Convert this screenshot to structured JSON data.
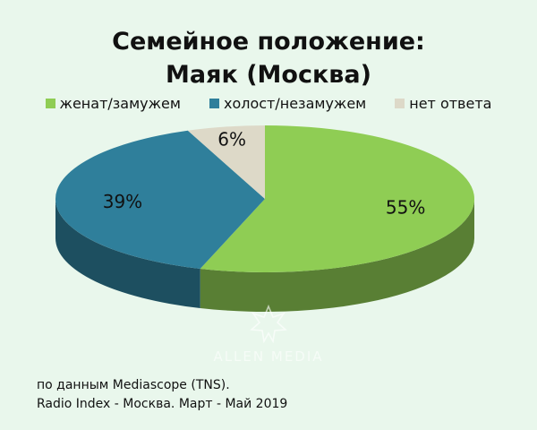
{
  "title": {
    "line1": "Семейное положение:",
    "line2": "Маяк (Москва)"
  },
  "chart_data": {
    "type": "pie",
    "title": "Семейное положение: Маяк (Москва)",
    "categories": [
      "женат/замужем",
      "холост/незамужем",
      "нет ответа"
    ],
    "values": [
      55,
      39,
      6
    ],
    "labels": [
      "55%",
      "39%",
      "6%"
    ],
    "colors": [
      "#8fcd54",
      "#2f7f9b",
      "#ddd9c8"
    ],
    "legend_position": "top"
  },
  "watermark": {
    "text": "ALLEN MEDIA",
    "icon": "starburst-icon"
  },
  "source": {
    "line1": "по данным Mediascope (TNS).",
    "line2": "Radio Index - Москва. Март - Май 2019"
  }
}
